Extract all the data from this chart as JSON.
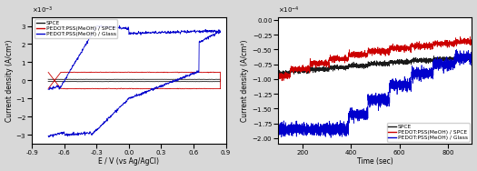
{
  "cv_xlim": [
    -0.9,
    0.9
  ],
  "cv_ylim": [
    -0.0035,
    0.0035
  ],
  "cv_xlabel": "E / V (vs Ag/AgCl)",
  "cv_ylabel": "Current density (A/cm²)",
  "cv_xticks": [
    -0.9,
    -0.6,
    -0.3,
    0.0,
    0.3,
    0.6,
    0.9
  ],
  "amp_xlim": [
    100,
    900
  ],
  "amp_ylim": [
    -0.00021,
    5e-06
  ],
  "amp_xlabel": "Time (sec)",
  "amp_ylabel": "Current density (A/cm²)",
  "amp_xticks": [
    200,
    400,
    600,
    800
  ],
  "legend_labels": [
    "SPCE",
    "PEDOT:PSS(MeOH) / SPCE",
    "PEDOT:PSS(MeOH) / Glass"
  ],
  "colors": [
    "#1a1a1a",
    "#cc0000",
    "#0000cc"
  ],
  "bg_color": "#d8d8d8",
  "plot_bg": "#ffffff"
}
